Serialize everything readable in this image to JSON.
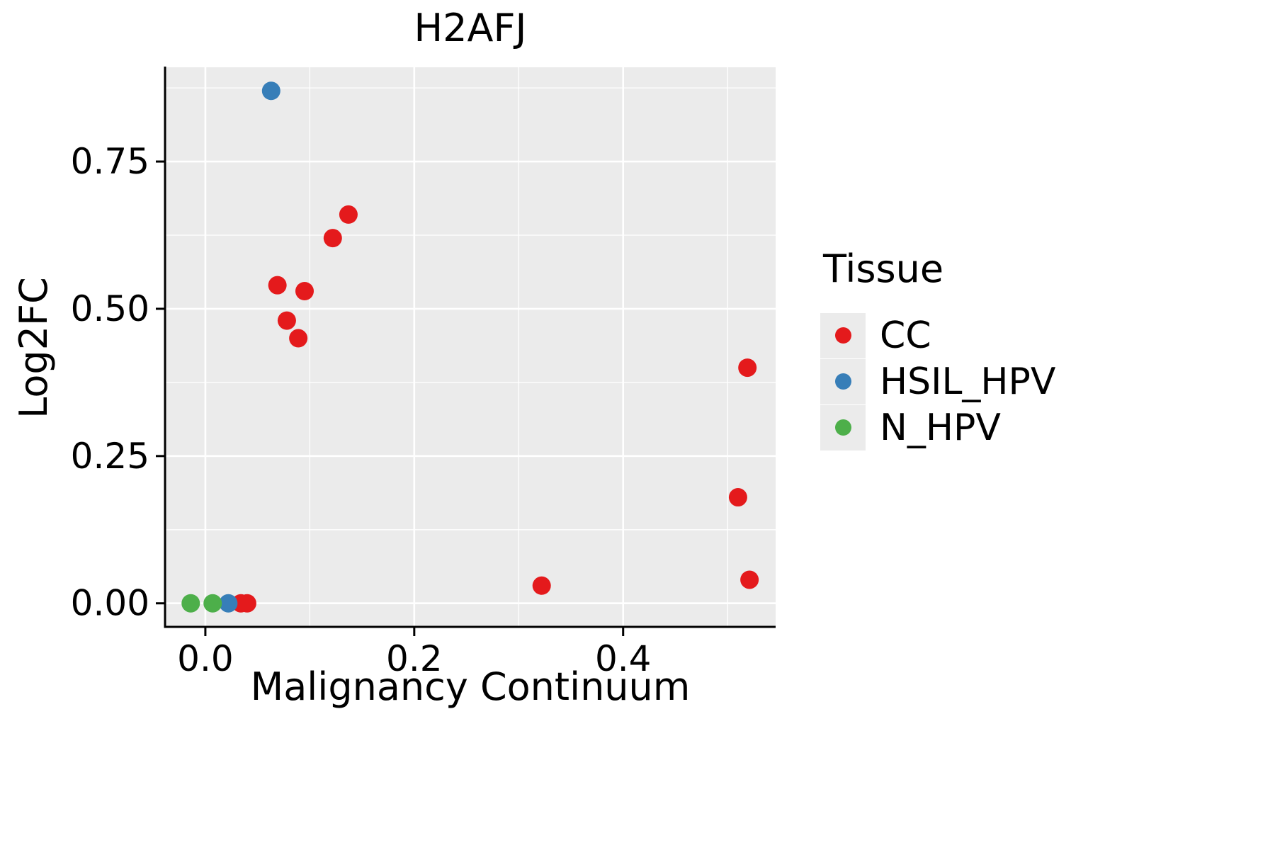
{
  "chart_data": {
    "type": "scatter",
    "title": "H2AFJ",
    "xlabel": "Malignancy Continuum",
    "ylabel": "Log2FC",
    "legend_title": "Tissue",
    "legend_position": "right",
    "grid": true,
    "panel_background": "#EBEBEB",
    "gridline_color": "#FFFFFF",
    "axis_color": "#000000",
    "text_color": "#000000",
    "xlim": [
      -0.0386,
      0.546
    ],
    "ylim": [
      -0.04,
      0.91
    ],
    "x_ticks": {
      "values": [
        0.0,
        0.2,
        0.4
      ],
      "labels": [
        "0.0",
        "0.2",
        "0.4"
      ],
      "minor": [
        0.1,
        0.3,
        0.5
      ]
    },
    "y_ticks": {
      "values": [
        0.0,
        0.25,
        0.5,
        0.75
      ],
      "labels": [
        "0.00",
        "0.25",
        "0.50",
        "0.75"
      ],
      "minor": [
        0.125,
        0.375,
        0.625,
        0.875
      ]
    },
    "series": [
      {
        "name": "CC",
        "color": "#E41A1C",
        "points": [
          [
            0.034,
            0.0
          ],
          [
            0.04,
            0.0
          ],
          [
            0.069,
            0.54
          ],
          [
            0.078,
            0.48
          ],
          [
            0.089,
            0.45
          ],
          [
            0.095,
            0.53
          ],
          [
            0.122,
            0.62
          ],
          [
            0.137,
            0.66
          ],
          [
            0.322,
            0.03
          ],
          [
            0.51,
            0.18
          ],
          [
            0.519,
            0.4
          ],
          [
            0.521,
            0.04
          ]
        ]
      },
      {
        "name": "HSIL_HPV",
        "color": "#377EB8",
        "points": [
          [
            0.022,
            0.0
          ],
          [
            0.063,
            0.87
          ]
        ]
      },
      {
        "name": "N_HPV",
        "color": "#4DAF4A",
        "points": [
          [
            -0.014,
            0.0
          ],
          [
            0.007,
            0.0
          ]
        ]
      }
    ]
  }
}
